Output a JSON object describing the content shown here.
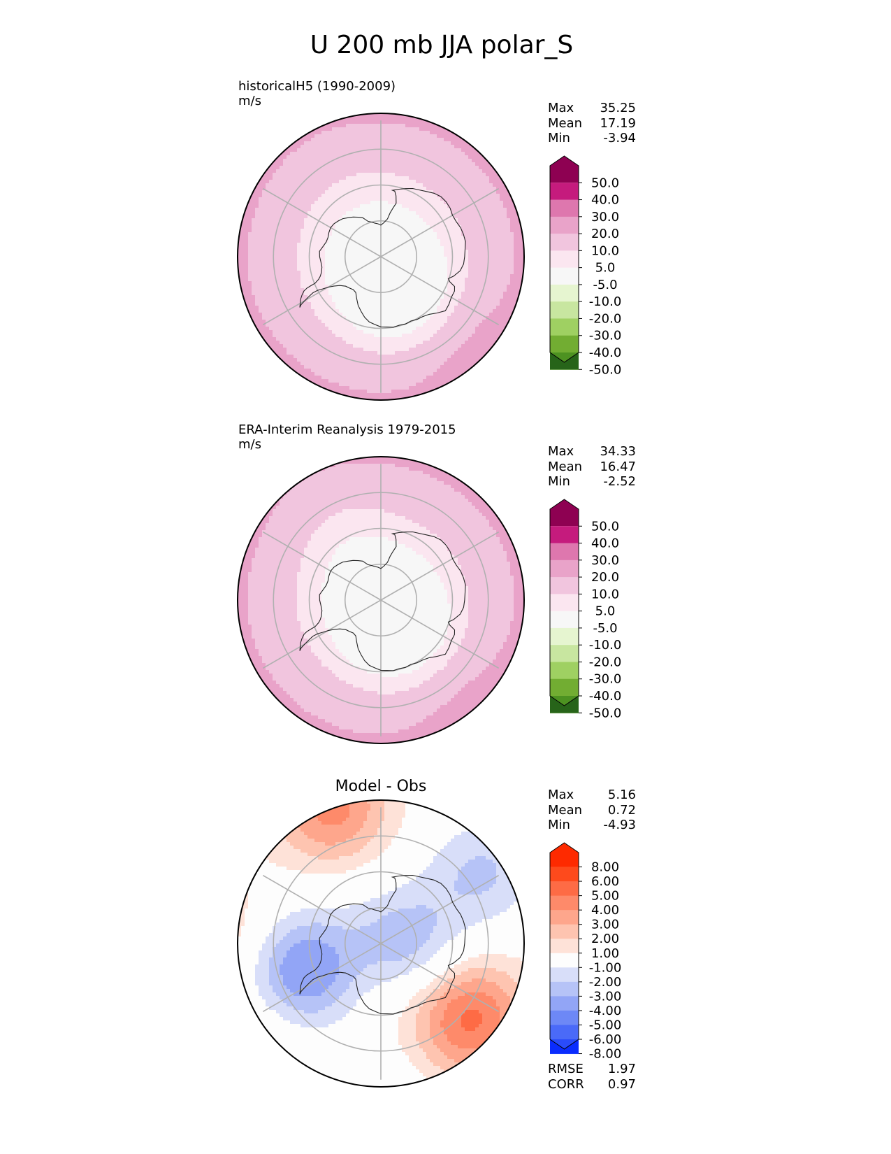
{
  "figure": {
    "title": "U 200 mb JJA polar_S"
  },
  "chart_data": [
    {
      "type": "heatmap",
      "projection": "south-polar-stereographic",
      "title": "historicalH5 (1990-2009)",
      "units": "m/s",
      "stats": [
        {
          "label": "Max",
          "value": "35.25"
        },
        {
          "label": "Mean",
          "value": "17.19"
        },
        {
          "label": "Min",
          "value": "-3.94"
        }
      ],
      "colorbar": {
        "ticks": [
          "50.0",
          "40.0",
          "30.0",
          "20.0",
          "10.0",
          "5.0",
          "-5.0",
          "-10.0",
          "-20.0",
          "-30.0",
          "-40.0",
          "-50.0"
        ],
        "colors": [
          "#8e0152",
          "#c51b7d",
          "#de77ae",
          "#e9a3c9",
          "#f1c5de",
          "#fbe6f0",
          "#f7f7f7",
          "#e6f5d0",
          "#c8e6a0",
          "#9fd062",
          "#72ad32",
          "#4d9221",
          "#276419"
        ],
        "extend": "both"
      },
      "field": {
        "ring_values": [
          {
            "lat": -50,
            "value": 22
          },
          {
            "lat": -60,
            "value": 15
          },
          {
            "lat": -70,
            "value": 8
          },
          {
            "lat": -80,
            "value": 3
          },
          {
            "lat": -90,
            "value": 2
          }
        ],
        "anomalies": [
          {
            "lon": 45,
            "lat": -42,
            "value": 31
          },
          {
            "lon": 210,
            "lat": -60,
            "value": 14
          },
          {
            "lon": 20,
            "lat": -77,
            "value": -3
          }
        ]
      }
    },
    {
      "type": "heatmap",
      "projection": "south-polar-stereographic",
      "title": "ERA-Interim Reanalysis 1979-2015",
      "units": "m/s",
      "stats": [
        {
          "label": "Max",
          "value": "34.33"
        },
        {
          "label": "Mean",
          "value": "16.47"
        },
        {
          "label": "Min",
          "value": "-2.52"
        }
      ],
      "colorbar": {
        "ticks": [
          "50.0",
          "40.0",
          "30.0",
          "20.0",
          "10.0",
          "5.0",
          "-5.0",
          "-10.0",
          "-20.0",
          "-30.0",
          "-40.0",
          "-50.0"
        ],
        "colors": [
          "#8e0152",
          "#c51b7d",
          "#de77ae",
          "#e9a3c9",
          "#f1c5de",
          "#fbe6f0",
          "#f7f7f7",
          "#e6f5d0",
          "#c8e6a0",
          "#9fd062",
          "#72ad32",
          "#4d9221",
          "#276419"
        ],
        "extend": "both"
      },
      "field": {
        "ring_values": [
          {
            "lat": -50,
            "value": 22
          },
          {
            "lat": -60,
            "value": 15
          },
          {
            "lat": -70,
            "value": 7.5
          },
          {
            "lat": -80,
            "value": 2
          },
          {
            "lat": -90,
            "value": 2
          }
        ],
        "anomalies": [
          {
            "lon": 40,
            "lat": -43,
            "value": 29
          },
          {
            "lon": 210,
            "lat": -60,
            "value": 12
          },
          {
            "lon": 30,
            "lat": -77,
            "value": -2
          }
        ]
      }
    },
    {
      "type": "heatmap",
      "projection": "south-polar-stereographic",
      "title": "Model - Obs",
      "units": "",
      "stats": [
        {
          "label": "Max",
          "value": "5.16"
        },
        {
          "label": "Mean",
          "value": "0.72"
        },
        {
          "label": "Min",
          "value": "-4.93"
        }
      ],
      "extra_stats": [
        {
          "label": "RMSE",
          "value": "1.97"
        },
        {
          "label": "CORR",
          "value": "0.97"
        }
      ],
      "colorbar": {
        "ticks": [
          "8.00",
          "6.00",
          "5.00",
          "4.00",
          "3.00",
          "2.00",
          "1.00",
          "-1.00",
          "-2.00",
          "-3.00",
          "-4.00",
          "-5.00",
          "-6.00",
          "-8.00"
        ],
        "colors": [
          "#fe2a00",
          "#fe4a1c",
          "#fe6b45",
          "#fe8a6a",
          "#fea68c",
          "#fec4b0",
          "#fee2d8",
          "#fdfdfd",
          "#d8def9",
          "#b6c3f7",
          "#92a5f6",
          "#6d88f6",
          "#4a6af8",
          "#2a4cfa",
          "#0a2cfe"
        ],
        "extend": "both"
      },
      "field": {
        "ring_values": [
          {
            "lat": -50,
            "value": 0.4
          },
          {
            "lat": -90,
            "value": 0
          }
        ],
        "anomalies": [
          {
            "lon": 50,
            "lat": -58,
            "value": 5
          },
          {
            "lon": 200,
            "lat": -50,
            "value": 4
          },
          {
            "lon": 290,
            "lat": -68,
            "value": -4.5
          },
          {
            "lon": 80,
            "lat": -84,
            "value": -3.5
          },
          {
            "lon": 125,
            "lat": -55,
            "value": -2.5
          },
          {
            "lon": 265,
            "lat": -42,
            "value": 1.8
          },
          {
            "lon": 345,
            "lat": -82,
            "value": 1.5
          },
          {
            "lon": 355,
            "lat": -42,
            "value": -1.5
          },
          {
            "lon": 310,
            "lat": -40,
            "value": 1.3
          }
        ]
      }
    }
  ]
}
